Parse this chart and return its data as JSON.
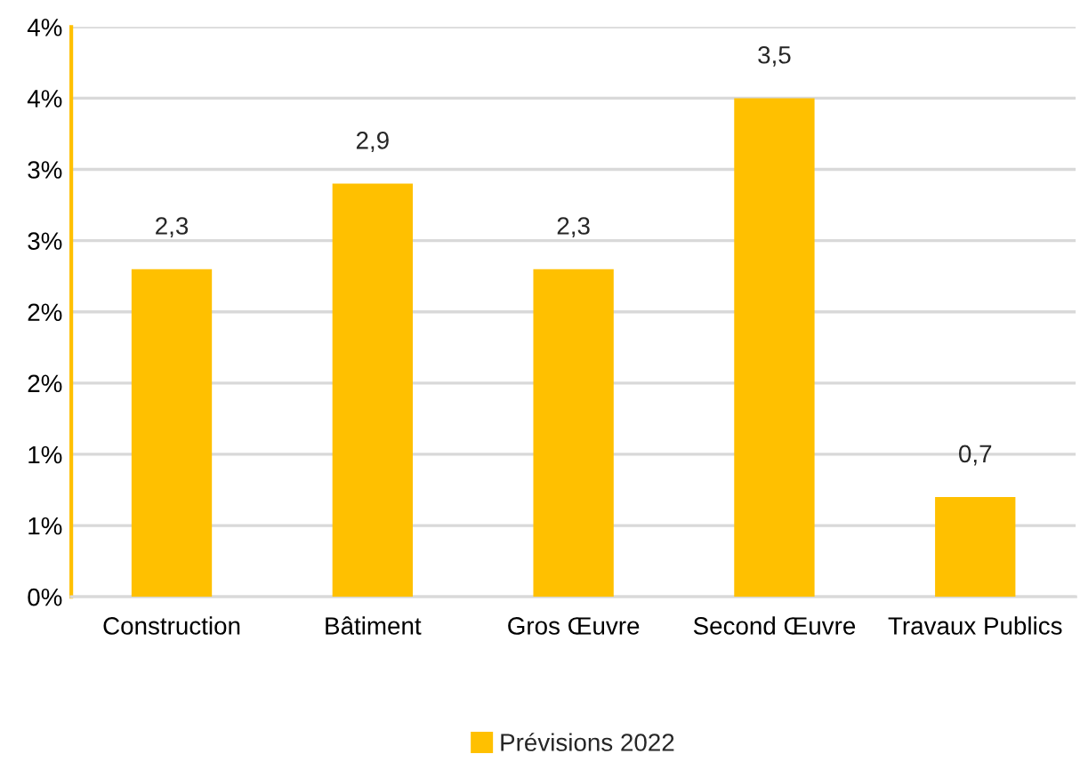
{
  "chart_data": {
    "type": "bar",
    "categories": [
      "Construction",
      "Bâtiment",
      "Gros Œuvre",
      "Second Œuvre",
      "Travaux Publics"
    ],
    "series": [
      {
        "name": "Prévisions 2022",
        "color": "#ffc000",
        "values": [
          2.3,
          2.9,
          2.3,
          3.5,
          0.7
        ]
      }
    ],
    "value_labels": [
      "2,3",
      "2,9",
      "2,3",
      "3,5",
      "0,7"
    ],
    "ylim": [
      0,
      4
    ],
    "yticks": [
      {
        "value": 0,
        "label": "0%"
      },
      {
        "value": 0.5,
        "label": "1%"
      },
      {
        "value": 1,
        "label": "1%"
      },
      {
        "value": 1.5,
        "label": "2%"
      },
      {
        "value": 2,
        "label": "2%"
      },
      {
        "value": 2.5,
        "label": "3%"
      },
      {
        "value": 3,
        "label": "3%"
      },
      {
        "value": 3.5,
        "label": "4%"
      },
      {
        "value": 4,
        "label": "4%"
      }
    ],
    "grid": "y",
    "legend": "bottom"
  }
}
